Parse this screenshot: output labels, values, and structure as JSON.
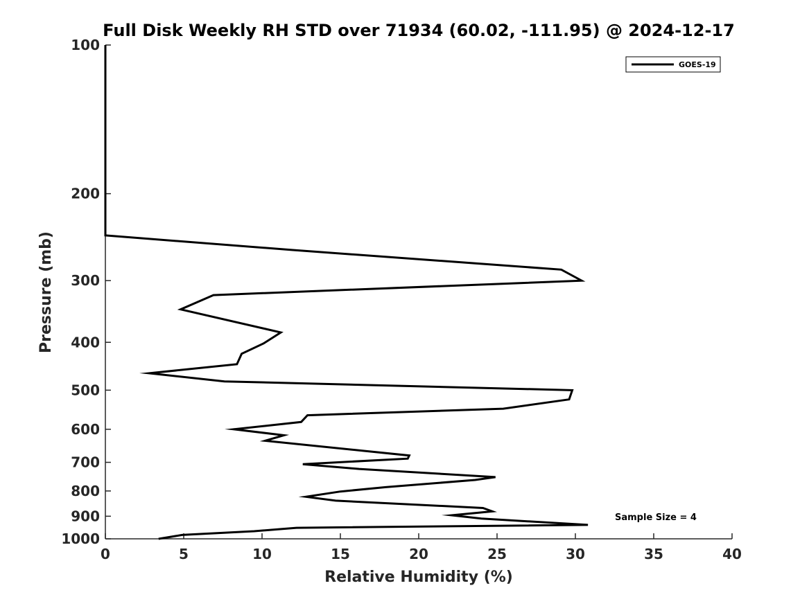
{
  "chart_data": {
    "type": "line",
    "title": "Full Disk Weekly RH STD over 71934 (60.02, -111.95) @ 2024-12-17",
    "xlabel": "Relative Humidity (%)",
    "ylabel": "Pressure (mb)",
    "xlim": [
      0,
      40
    ],
    "ylim": [
      100,
      1000
    ],
    "yscale": "log",
    "y_reversed": true,
    "x_ticks": [
      "0",
      "5",
      "10",
      "15",
      "20",
      "25",
      "30",
      "35",
      "40"
    ],
    "y_ticks": [
      "100",
      "200",
      "300",
      "400",
      "500",
      "600",
      "700",
      "800",
      "900",
      "1000"
    ],
    "legend": {
      "location": "top-right",
      "entries": [
        "GOES-19"
      ]
    },
    "annotation": "Sample Size = 4",
    "series": [
      {
        "name": "GOES-19",
        "color": "#000000",
        "x": [
          0,
          0,
          0,
          0,
          0,
          0,
          0,
          0,
          11.9,
          29.1,
          30.4,
          6.9,
          4.8,
          11.2,
          10.1,
          8.7,
          8.4,
          2.8,
          7.6,
          29.8,
          29.6,
          25.4,
          12.9,
          12.5,
          8.2,
          11.4,
          10.2,
          19.4,
          19.3,
          12.6,
          16.2,
          24.9,
          23.6,
          17.9,
          15.0,
          12.8,
          14.7,
          24.1,
          24.7,
          22.1,
          24.0,
          30.8,
          12.2,
          9.5,
          4.9,
          3.4
        ],
        "y": [
          100,
          115,
          130,
          150,
          170,
          200,
          220,
          243,
          260,
          285,
          300,
          321,
          343,
          382,
          402,
          422,
          443,
          462,
          480,
          500,
          522,
          545,
          562,
          580,
          600,
          617,
          633,
          678,
          688,
          706,
          722,
          750,
          760,
          786,
          802,
          822,
          837,
          866,
          880,
          896,
          910,
          937,
          950,
          965,
          982,
          1000
        ]
      }
    ]
  }
}
